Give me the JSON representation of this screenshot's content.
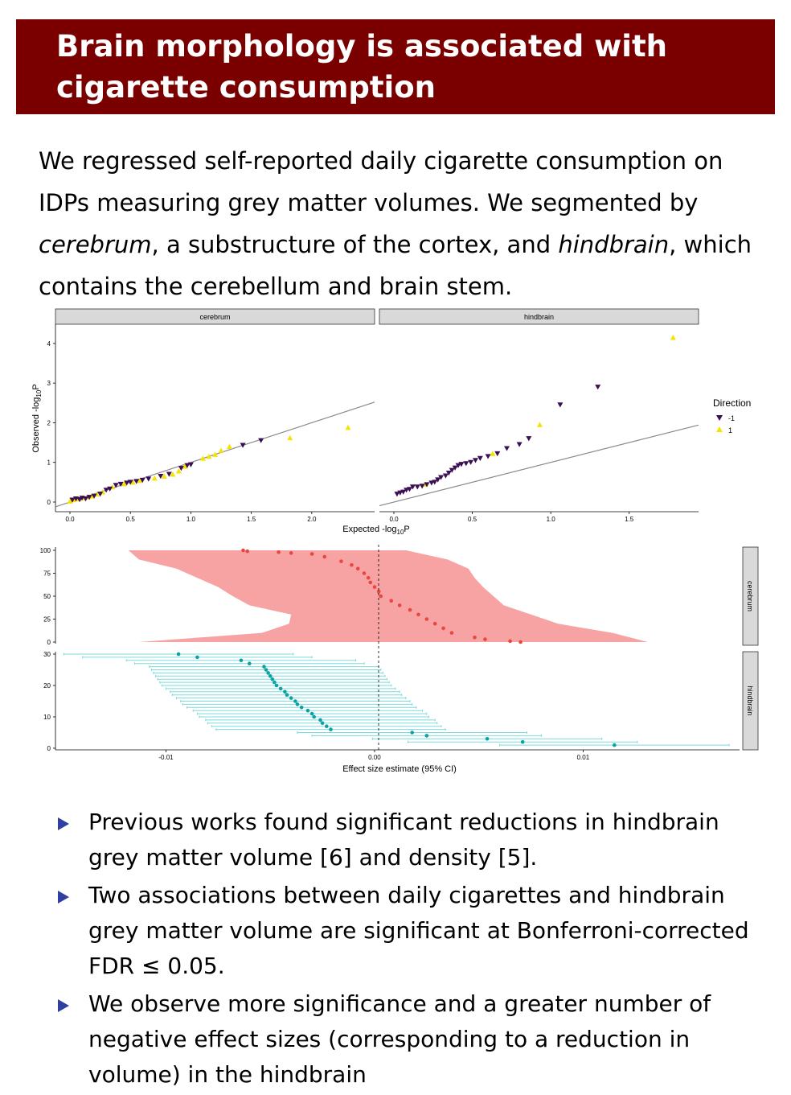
{
  "slide": {
    "title_line1": "Brain morphology is associated with",
    "title_line2": "cigarette consumption",
    "intro": {
      "s1": "We regressed self-reported daily cigarette consumption on IDPs measuring grey matter volumes. We segmented by ",
      "em1": "cerebrum",
      "s2": ", a substructure of the cortex, and ",
      "em2": "hindbrain",
      "s3": ", which contains the cerebellum and brain stem."
    },
    "bullets": [
      "Previous works found significant reductions in hindbrain grey matter volume [6] and density [5].",
      "Two associations between daily cigarettes and hindbrain grey matter volume are significant at Bonferroni-corrected FDR ≤ 0.05.",
      "We observe more significance and a greater number of negative effect sizes (corresponding to a reduction in volume) in the hindbrain"
    ]
  },
  "colors": {
    "title_bg": "#7a0000",
    "dir_neg": "#3b0f52",
    "dir_pos": "#f5e400",
    "cerebrum_fill": "#f8a3a3",
    "cerebrum_point": "#e8473f",
    "hindbrain_line": "#7fd9d9",
    "hindbrain_point": "#0aa3a3",
    "strip_bg": "#d9d9d9",
    "bullet_marker": "#3040a0"
  },
  "chart_data": [
    {
      "type": "scatter",
      "panels": [
        "cerebrum",
        "hindbrain"
      ],
      "xlabel": "Expected -log10P",
      "ylabel": "Observed -log10P",
      "xlim_cerebrum": [
        0,
        2.4
      ],
      "xlim_hindbrain": [
        0,
        1.85
      ],
      "ylim": [
        0,
        4.2
      ],
      "x_ticks_cerebrum": [
        "0.0",
        "0.5",
        "1.0",
        "1.5",
        "2.0"
      ],
      "x_ticks_hindbrain": [
        "0.0",
        "0.5",
        "1.0",
        "1.5"
      ],
      "y_ticks": [
        "0",
        "1",
        "2",
        "3",
        "4"
      ],
      "legend": {
        "title": "Direction",
        "entries": [
          "-1",
          "1"
        ],
        "position": "right"
      },
      "series_cerebrum_neg": [
        [
          0.02,
          0.05
        ],
        [
          0.05,
          0.08
        ],
        [
          0.08,
          0.06
        ],
        [
          0.1,
          0.1
        ],
        [
          0.13,
          0.08
        ],
        [
          0.16,
          0.12
        ],
        [
          0.2,
          0.15
        ],
        [
          0.25,
          0.2
        ],
        [
          0.3,
          0.3
        ],
        [
          0.33,
          0.33
        ],
        [
          0.38,
          0.42
        ],
        [
          0.42,
          0.45
        ],
        [
          0.47,
          0.48
        ],
        [
          0.5,
          0.5
        ],
        [
          0.55,
          0.52
        ],
        [
          0.6,
          0.55
        ],
        [
          0.65,
          0.58
        ],
        [
          0.75,
          0.65
        ],
        [
          0.82,
          0.7
        ],
        [
          0.92,
          0.85
        ],
        [
          0.97,
          0.92
        ],
        [
          1.0,
          0.94
        ],
        [
          1.43,
          1.43
        ],
        [
          1.58,
          1.55
        ]
      ],
      "series_cerebrum_pos": [
        [
          0.0,
          0.02
        ],
        [
          0.03,
          0.06
        ],
        [
          0.07,
          0.08
        ],
        [
          0.11,
          0.11
        ],
        [
          0.15,
          0.13
        ],
        [
          0.18,
          0.15
        ],
        [
          0.22,
          0.2
        ],
        [
          0.27,
          0.25
        ],
        [
          0.35,
          0.38
        ],
        [
          0.45,
          0.46
        ],
        [
          0.52,
          0.5
        ],
        [
          0.58,
          0.54
        ],
        [
          0.7,
          0.6
        ],
        [
          0.78,
          0.65
        ],
        [
          0.85,
          0.7
        ],
        [
          0.9,
          0.78
        ],
        [
          0.95,
          0.9
        ],
        [
          1.1,
          1.1
        ],
        [
          1.15,
          1.15
        ],
        [
          1.2,
          1.2
        ],
        [
          1.25,
          1.3
        ],
        [
          1.32,
          1.4
        ],
        [
          1.82,
          1.62
        ],
        [
          2.3,
          1.88
        ]
      ],
      "series_hindbrain_neg": [
        [
          0.02,
          0.2
        ],
        [
          0.04,
          0.23
        ],
        [
          0.06,
          0.25
        ],
        [
          0.08,
          0.3
        ],
        [
          0.1,
          0.32
        ],
        [
          0.12,
          0.38
        ],
        [
          0.15,
          0.38
        ],
        [
          0.18,
          0.4
        ],
        [
          0.21,
          0.44
        ],
        [
          0.24,
          0.48
        ],
        [
          0.26,
          0.5
        ],
        [
          0.28,
          0.56
        ],
        [
          0.3,
          0.62
        ],
        [
          0.33,
          0.66
        ],
        [
          0.35,
          0.73
        ],
        [
          0.37,
          0.8
        ],
        [
          0.39,
          0.86
        ],
        [
          0.41,
          0.92
        ],
        [
          0.43,
          0.95
        ],
        [
          0.46,
          0.97
        ],
        [
          0.49,
          1.0
        ],
        [
          0.52,
          1.05
        ],
        [
          0.55,
          1.1
        ],
        [
          0.6,
          1.15
        ],
        [
          0.66,
          1.22
        ],
        [
          0.72,
          1.35
        ],
        [
          0.8,
          1.45
        ],
        [
          0.86,
          1.6
        ],
        [
          1.06,
          2.45
        ],
        [
          1.3,
          2.9
        ]
      ],
      "series_hindbrain_pos": [
        [
          0.2,
          0.45
        ],
        [
          0.63,
          1.22
        ],
        [
          0.93,
          1.95
        ],
        [
          1.78,
          4.15
        ]
      ]
    },
    {
      "type": "scatter",
      "panels": [
        "cerebrum",
        "hindbrain"
      ],
      "xlabel": "Effect size estimate (95% CI)",
      "xlim": [
        -0.0153,
        0.0175
      ],
      "x_ticks": [
        "-0.01",
        "0.00",
        "0.01"
      ],
      "y_ticks_cerebrum": [
        "0",
        "25",
        "50",
        "75",
        "100"
      ],
      "y_ticks_hindbrain": [
        "0",
        "10",
        "20",
        "30"
      ],
      "ylim_cerebrum": [
        0,
        100
      ],
      "ylim_hindbrain": [
        0,
        30
      ],
      "reference_line": 0,
      "cerebrum_ci_profile": {
        "rank": [
          0,
          10,
          20,
          30,
          40,
          50,
          60,
          70,
          80,
          90,
          100
        ],
        "lower": [
          -0.0113,
          -0.0054,
          -0.0041,
          -0.004,
          -0.006,
          -0.0068,
          -0.0075,
          -0.0085,
          -0.0095,
          -0.0113,
          -0.0118
        ],
        "upper": [
          0.0131,
          0.0114,
          0.0088,
          0.0075,
          0.0062,
          0.0057,
          0.0052,
          0.0048,
          0.0045,
          0.0035,
          0.0015
        ]
      },
      "cerebrum_points": [
        [
          100,
          -0.0063
        ],
        [
          99,
          -0.0061
        ],
        [
          98,
          -0.0046
        ],
        [
          97,
          -0.004
        ],
        [
          96,
          -0.003
        ],
        [
          93,
          -0.0024
        ],
        [
          88,
          -0.0016
        ],
        [
          84,
          -0.0011
        ],
        [
          80,
          -0.0008
        ],
        [
          75,
          -0.0005
        ],
        [
          70,
          -0.0003
        ],
        [
          65,
          -0.0002
        ],
        [
          60,
          0
        ],
        [
          55,
          0.0002
        ],
        [
          50,
          0.0003
        ],
        [
          45,
          0.0008
        ],
        [
          40,
          0.0012
        ],
        [
          35,
          0.0017
        ],
        [
          30,
          0.0021
        ],
        [
          25,
          0.0025
        ],
        [
          20,
          0.0029
        ],
        [
          15,
          0.0033
        ],
        [
          10,
          0.0037
        ],
        [
          5,
          0.0048
        ],
        [
          3,
          0.0053
        ],
        [
          1,
          0.0065
        ],
        [
          0,
          0.007
        ]
      ],
      "hindbrain_points": [
        [
          30,
          -0.0094
        ],
        [
          29,
          -0.0085
        ],
        [
          28,
          -0.0064
        ],
        [
          27,
          -0.006
        ],
        [
          26,
          -0.0053
        ],
        [
          25,
          -0.0052
        ],
        [
          24,
          -0.0051
        ],
        [
          23,
          -0.005
        ],
        [
          22,
          -0.0049
        ],
        [
          21,
          -0.0048
        ],
        [
          20,
          -0.0047
        ],
        [
          19,
          -0.0045
        ],
        [
          18,
          -0.0043
        ],
        [
          17,
          -0.0042
        ],
        [
          16,
          -0.004
        ],
        [
          15,
          -0.0038
        ],
        [
          14,
          -0.0037
        ],
        [
          13,
          -0.0035
        ],
        [
          12,
          -0.0032
        ],
        [
          11,
          -0.003
        ],
        [
          10,
          -0.0029
        ],
        [
          9,
          -0.0026
        ],
        [
          8,
          -0.0025
        ],
        [
          7,
          -0.0023
        ],
        [
          6,
          -0.0021
        ],
        [
          5,
          0.0018
        ],
        [
          4,
          0.0025
        ],
        [
          3,
          0.0054
        ],
        [
          2,
          0.0071
        ],
        [
          1,
          0.0115
        ]
      ],
      "hindbrain_ci_halfwidth": 0.0055
    }
  ]
}
